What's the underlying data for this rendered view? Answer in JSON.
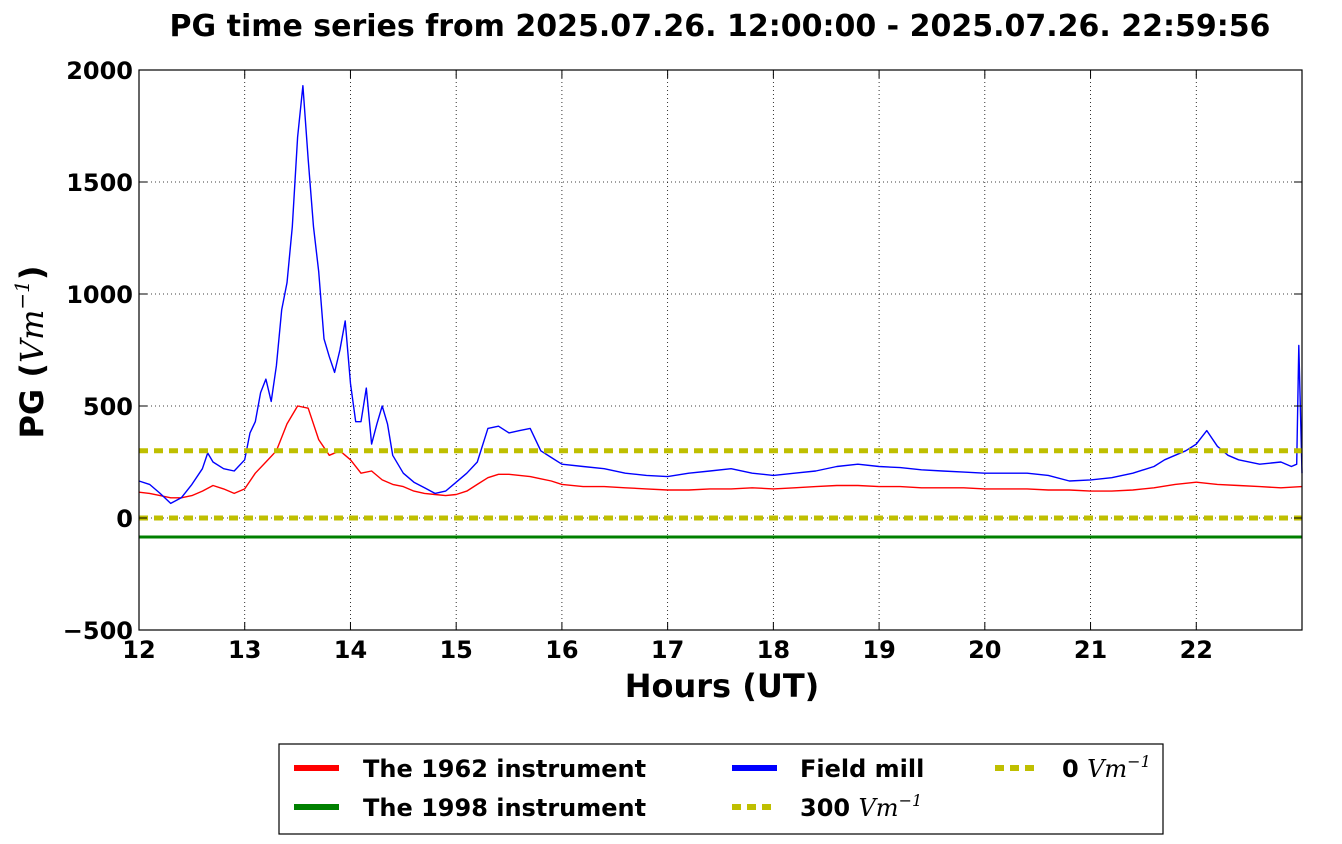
{
  "chart_data": {
    "type": "line",
    "title": "PG time series from 2025.07.26. 12:00:00 - 2025.07.26. 22:59:56",
    "xlabel": "Hours (UT)",
    "ylabel": "PG",
    "ylabel_unit": "Vm",
    "ylabel_unit_exp": "−1",
    "xlim": [
      12,
      23
    ],
    "ylim": [
      -500,
      2000
    ],
    "x_ticks": [
      12,
      13,
      14,
      15,
      16,
      17,
      18,
      19,
      20,
      21,
      22
    ],
    "x_tick_labels": [
      "12",
      "13",
      "14",
      "15",
      "16",
      "17",
      "18",
      "19",
      "20",
      "21",
      "22"
    ],
    "y_ticks": [
      -500,
      0,
      500,
      1000,
      1500,
      2000
    ],
    "y_tick_labels": [
      "−500",
      "0",
      "500",
      "1000",
      "1500",
      "2000"
    ],
    "grid": true,
    "legend_position": "bottom-outside",
    "series": [
      {
        "name": "The 1962 instrument",
        "color": "#ff0000",
        "style": "solid",
        "x": [
          12.0,
          12.1,
          12.2,
          12.3,
          12.4,
          12.5,
          12.6,
          12.7,
          12.8,
          12.9,
          13.0,
          13.1,
          13.2,
          13.3,
          13.4,
          13.5,
          13.6,
          13.7,
          13.8,
          13.9,
          14.0,
          14.1,
          14.2,
          14.3,
          14.4,
          14.5,
          14.6,
          14.7,
          14.8,
          14.9,
          15.0,
          15.1,
          15.2,
          15.3,
          15.4,
          15.5,
          15.6,
          15.7,
          15.8,
          15.9,
          16.0,
          16.2,
          16.4,
          16.6,
          16.8,
          17.0,
          17.2,
          17.4,
          17.6,
          17.8,
          18.0,
          18.2,
          18.4,
          18.6,
          18.8,
          19.0,
          19.2,
          19.4,
          19.6,
          19.8,
          20.0,
          20.2,
          20.4,
          20.6,
          20.8,
          21.0,
          21.2,
          21.4,
          21.6,
          21.8,
          22.0,
          22.1,
          22.2,
          22.4,
          22.6,
          22.8,
          23.0
        ],
        "y": [
          115,
          110,
          100,
          90,
          90,
          100,
          120,
          145,
          130,
          110,
          130,
          200,
          250,
          300,
          420,
          500,
          490,
          350,
          280,
          300,
          260,
          200,
          210,
          170,
          150,
          140,
          120,
          110,
          105,
          100,
          105,
          120,
          150,
          180,
          195,
          195,
          190,
          185,
          175,
          165,
          150,
          140,
          140,
          135,
          130,
          125,
          125,
          130,
          130,
          135,
          130,
          135,
          140,
          145,
          145,
          140,
          140,
          135,
          135,
          135,
          130,
          130,
          130,
          125,
          125,
          120,
          120,
          125,
          135,
          150,
          160,
          155,
          150,
          145,
          140,
          135,
          140
        ]
      },
      {
        "name": "The 1998 instrument",
        "color": "#008000",
        "style": "solid",
        "x": [
          12,
          23
        ],
        "y": [
          -85,
          -85
        ]
      },
      {
        "name": "Field mill",
        "color": "#0000ff",
        "style": "solid",
        "x": [
          12.0,
          12.1,
          12.2,
          12.3,
          12.4,
          12.5,
          12.6,
          12.65,
          12.7,
          12.8,
          12.9,
          13.0,
          13.05,
          13.1,
          13.15,
          13.2,
          13.25,
          13.3,
          13.35,
          13.4,
          13.45,
          13.5,
          13.55,
          13.6,
          13.65,
          13.7,
          13.75,
          13.8,
          13.85,
          13.9,
          13.95,
          14.0,
          14.05,
          14.1,
          14.15,
          14.2,
          14.25,
          14.3,
          14.35,
          14.4,
          14.5,
          14.6,
          14.7,
          14.8,
          14.9,
          15.0,
          15.1,
          15.2,
          15.3,
          15.4,
          15.5,
          15.6,
          15.7,
          15.8,
          15.9,
          16.0,
          16.2,
          16.4,
          16.6,
          16.8,
          17.0,
          17.2,
          17.4,
          17.6,
          17.8,
          18.0,
          18.2,
          18.4,
          18.6,
          18.8,
          19.0,
          19.2,
          19.4,
          19.6,
          19.8,
          20.0,
          20.2,
          20.4,
          20.6,
          20.8,
          21.0,
          21.2,
          21.4,
          21.6,
          21.7,
          21.8,
          21.9,
          22.0,
          22.1,
          22.2,
          22.3,
          22.4,
          22.6,
          22.8,
          22.9,
          22.95,
          22.97,
          23.0
        ],
        "y": [
          165,
          150,
          110,
          65,
          90,
          150,
          220,
          290,
          250,
          220,
          210,
          260,
          380,
          430,
          560,
          620,
          520,
          680,
          930,
          1050,
          1300,
          1700,
          1930,
          1600,
          1300,
          1100,
          800,
          720,
          650,
          750,
          880,
          600,
          430,
          430,
          580,
          330,
          420,
          500,
          420,
          280,
          200,
          160,
          135,
          110,
          120,
          160,
          200,
          250,
          400,
          410,
          380,
          390,
          400,
          300,
          270,
          240,
          230,
          220,
          200,
          190,
          185,
          200,
          210,
          220,
          200,
          190,
          200,
          210,
          230,
          240,
          230,
          225,
          215,
          210,
          205,
          200,
          200,
          200,
          190,
          165,
          170,
          180,
          200,
          230,
          260,
          280,
          300,
          330,
          390,
          320,
          280,
          260,
          240,
          250,
          230,
          240,
          770,
          200
        ]
      },
      {
        "name": "300",
        "name_unit": "Vm",
        "name_unit_exp": "−1",
        "color": "#bfbf00",
        "style": "dashed",
        "x": [
          12,
          23
        ],
        "y": [
          300,
          300
        ]
      },
      {
        "name": "0",
        "name_unit": "Vm",
        "name_unit_exp": "−1",
        "color": "#bfbf00",
        "style": "dashed",
        "x": [
          12,
          23
        ],
        "y": [
          0,
          0
        ]
      }
    ]
  }
}
